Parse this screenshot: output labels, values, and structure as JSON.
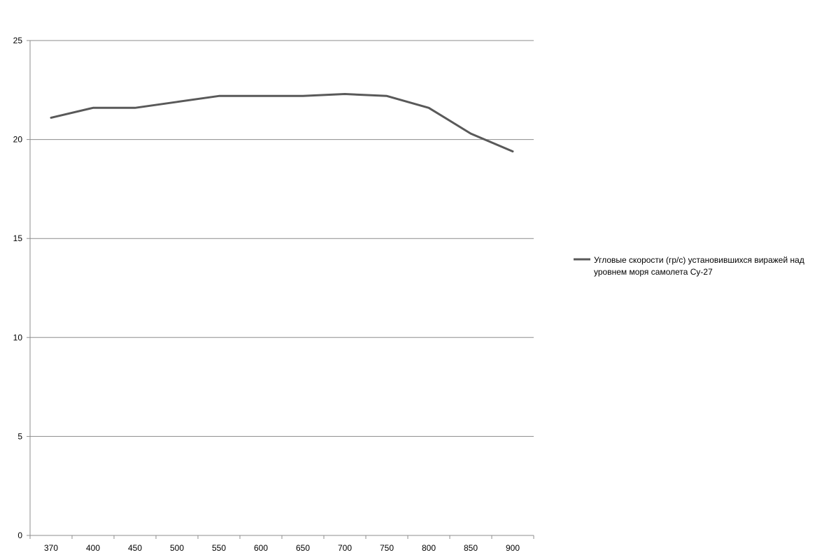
{
  "chart_data": {
    "type": "line",
    "title": "",
    "xlabel": "",
    "ylabel": "",
    "categories": [
      "370",
      "400",
      "450",
      "500",
      "550",
      "600",
      "650",
      "700",
      "750",
      "800",
      "850",
      "900"
    ],
    "ylim": [
      0,
      25
    ],
    "yticks": [
      0,
      5,
      10,
      15,
      20,
      25
    ],
    "grid": true,
    "legend_position": "right",
    "series": [
      {
        "name": "Угловые скорости (гр/с) установившихся виражей над уровнем моря самолета Су-27",
        "legend_lines": [
          "Угловые скорости (гр/с) установившихся виражей над",
          "уровнем моря самолета Су-27"
        ],
        "values": [
          21.1,
          21.6,
          21.6,
          21.9,
          22.2,
          22.2,
          22.2,
          22.3,
          22.2,
          21.6,
          20.3,
          19.4
        ],
        "color": "#595959"
      }
    ],
    "colors": {
      "gridline": "#8c8c8c",
      "axis": "#8c8c8c",
      "series": "#595959"
    }
  }
}
